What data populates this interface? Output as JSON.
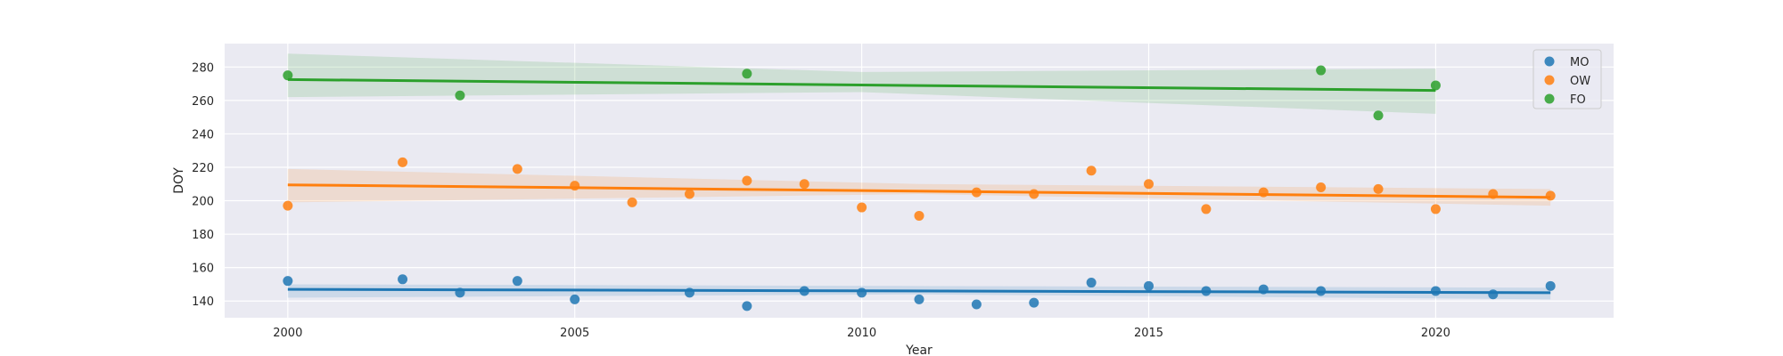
{
  "chart_data": {
    "type": "scatter",
    "xlabel": "Year",
    "ylabel": "DOY",
    "xlim": [
      1998.9,
      2023.1
    ],
    "ylim": [
      130,
      294
    ],
    "xticks": [
      2000,
      2005,
      2010,
      2015,
      2020
    ],
    "yticks": [
      140,
      160,
      180,
      200,
      220,
      240,
      260,
      280
    ],
    "grid": true,
    "legend_position": "top-right",
    "series": [
      {
        "name": "MO",
        "color": "#1f77b4",
        "x": [
          2000,
          2002,
          2003,
          2004,
          2005,
          2007,
          2008,
          2009,
          2010,
          2011,
          2012,
          2013,
          2014,
          2015,
          2016,
          2017,
          2018,
          2020,
          2021,
          2022
        ],
        "y": [
          152,
          153,
          145,
          152,
          141,
          145,
          137,
          146,
          145,
          141,
          138,
          139,
          151,
          149,
          146,
          147,
          146,
          146,
          144,
          149
        ],
        "trend": {
          "x0": 2000,
          "y0": 147,
          "x1": 2022,
          "y1": 145
        },
        "ci_upper": [
          150,
          149,
          148
        ],
        "ci_lower": [
          142,
          144,
          141
        ]
      },
      {
        "name": "OW",
        "color": "#ff7f0e",
        "x": [
          2000,
          2002,
          2004,
          2005,
          2006,
          2007,
          2008,
          2009,
          2010,
          2011,
          2012,
          2013,
          2014,
          2015,
          2016,
          2017,
          2018,
          2019,
          2020,
          2021,
          2022
        ],
        "y": [
          197,
          223,
          219,
          209,
          199,
          204,
          212,
          210,
          196,
          191,
          205,
          204,
          218,
          210,
          195,
          205,
          208,
          207,
          195,
          204,
          203
        ],
        "trend": {
          "x0": 2000,
          "y0": 209.5,
          "x1": 2022,
          "y1": 202
        },
        "ci_upper": [
          219,
          210,
          207
        ],
        "ci_lower": [
          199,
          204,
          197
        ]
      },
      {
        "name": "FO",
        "color": "#2ca02c",
        "x": [
          2000,
          2003,
          2008,
          2018,
          2019,
          2020
        ],
        "y": [
          275,
          263,
          276,
          278,
          251,
          269
        ],
        "trend": {
          "x0": 2000,
          "y0": 272.5,
          "x1": 2020,
          "y1": 266
        },
        "ci_upper": [
          288,
          277,
          279
        ],
        "ci_lower": [
          262,
          265,
          252
        ]
      }
    ]
  }
}
